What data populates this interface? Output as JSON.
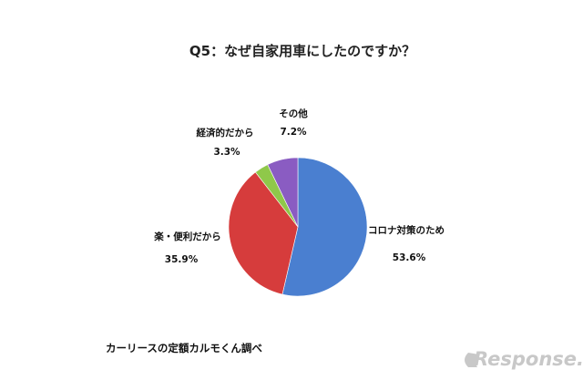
{
  "chart_data": {
    "type": "pie",
    "title": "Q5：なぜ自家用車にしたのですか？",
    "slices": [
      {
        "label": "コロナ対策のため",
        "value": 53.6,
        "value_label": "53.6%",
        "color": "#4a7fd0"
      },
      {
        "label": "楽・便利だから",
        "value": 35.9,
        "value_label": "35.9%",
        "color": "#d63c3c"
      },
      {
        "label": "経済的だから",
        "value": 3.3,
        "value_label": "3.3%",
        "color": "#8fc84a"
      },
      {
        "label": "その他",
        "value": 7.2,
        "value_label": "7.2%",
        "color": "#8a5cc2"
      }
    ],
    "start": "top",
    "direction": "clockwise"
  },
  "footer": {
    "source": "カーリースの定額カルモくん調べ"
  },
  "watermark": {
    "text": "Response.",
    "icon": "response-logo-icon"
  }
}
